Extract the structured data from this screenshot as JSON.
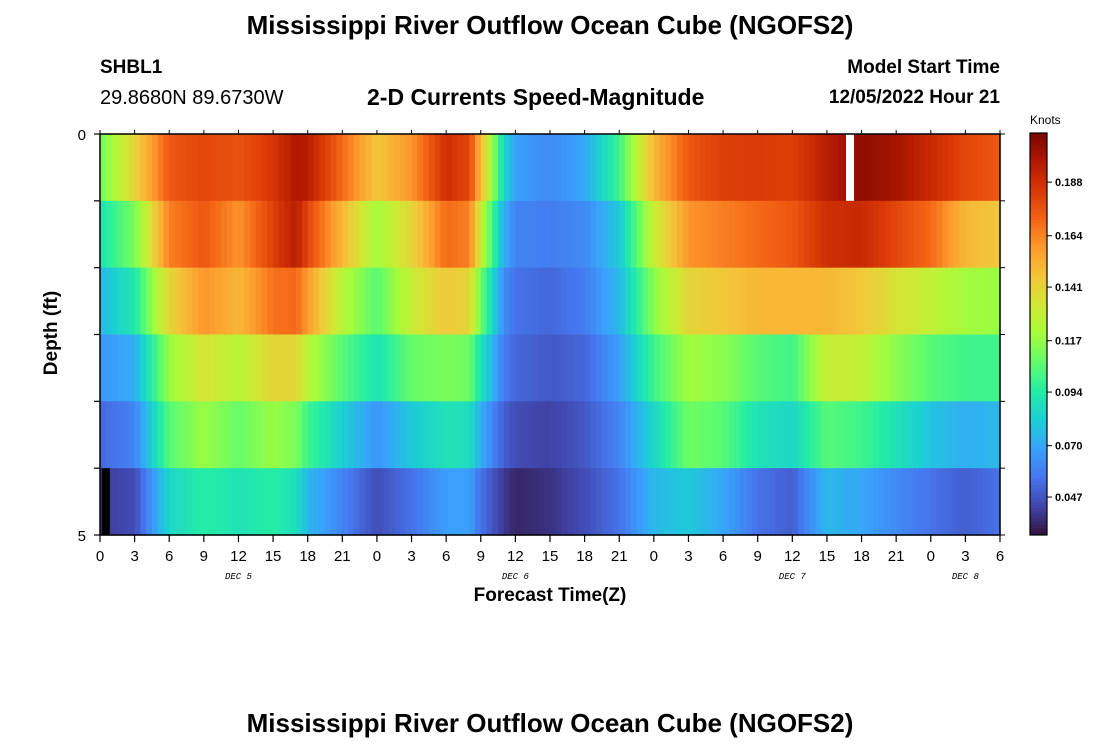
{
  "header": {
    "title": "Mississippi River Outflow Ocean Cube (NGOFS2)",
    "station": "SHBL1",
    "coordinates": "29.8680N  89.6730W",
    "subtitle": "2-D Currents Speed-Magnitude",
    "start_label": "Model Start Time",
    "start_value": "12/05/2022 Hour 21"
  },
  "footer": {
    "title": "Mississippi River Outflow Ocean Cube (NGOFS2)"
  },
  "chart_data": {
    "type": "heatmap",
    "title": "2-D Currents Speed-Magnitude",
    "xlabel": "Forecast Time(Z)",
    "ylabel": "Depth (ft)",
    "colorbar_label": "Knots",
    "x_range_hours": [
      0,
      78
    ],
    "y_range": [
      0,
      5
    ],
    "y_ticks": [
      "0",
      "5"
    ],
    "x_ticks": [
      "0",
      "3",
      "6",
      "9",
      "12",
      "15",
      "18",
      "21",
      "0",
      "3",
      "6",
      "9",
      "12",
      "15",
      "18",
      "21",
      "0",
      "3",
      "6",
      "9",
      "12",
      "15",
      "18",
      "21",
      "0",
      "3",
      "6"
    ],
    "day_labels": [
      {
        "label": "DEC 5",
        "hour": 12
      },
      {
        "label": "DEC 6",
        "hour": 36
      },
      {
        "label": "DEC 7",
        "hour": 60
      },
      {
        "label": "DEC 8",
        "hour": 75
      }
    ],
    "colorbar_ticks": [
      "0.047",
      "0.070",
      "0.094",
      "0.117",
      "0.141",
      "0.164",
      "0.188"
    ],
    "colorbar_tick_values": [
      0.047,
      0.07,
      0.094,
      0.117,
      0.141,
      0.164,
      0.188
    ],
    "value_range": [
      0.03,
      0.21
    ],
    "colormap": [
      "#30123b",
      "#4145ab",
      "#4675ed",
      "#39a2fc",
      "#1bcfd4",
      "#24eca6",
      "#61fc6c",
      "#a4fc3b",
      "#d1e834",
      "#f3c63a",
      "#fe9b2d",
      "#f36315",
      "#d93806",
      "#b11901",
      "#7a0402"
    ],
    "layer_keyframes": [
      {
        "x": [
          0,
          3,
          6,
          9,
          12,
          15,
          17,
          18,
          21,
          24,
          27,
          30,
          32,
          33,
          35,
          36,
          39,
          42,
          45,
          48,
          51,
          54,
          57,
          60,
          63,
          66,
          69,
          72,
          75,
          78
        ],
        "v": [
          0.11,
          0.14,
          0.175,
          0.18,
          0.176,
          0.185,
          0.198,
          0.195,
          0.17,
          0.145,
          0.16,
          0.188,
          0.18,
          0.15,
          0.085,
          0.068,
          0.062,
          0.07,
          0.1,
          0.15,
          0.175,
          0.182,
          0.184,
          0.182,
          0.195,
          0.205,
          0.2,
          0.19,
          0.18,
          0.175
        ]
      },
      {
        "x": [
          0,
          3,
          6,
          9,
          12,
          15,
          17,
          18,
          21,
          24,
          27,
          30,
          32,
          33,
          35,
          36,
          39,
          42,
          45,
          48,
          51,
          54,
          57,
          60,
          63,
          66,
          69,
          72,
          75,
          78
        ],
        "v": [
          0.09,
          0.112,
          0.165,
          0.175,
          0.16,
          0.182,
          0.195,
          0.18,
          0.15,
          0.12,
          0.14,
          0.17,
          0.165,
          0.13,
          0.072,
          0.06,
          0.058,
          0.062,
          0.08,
          0.13,
          0.16,
          0.165,
          0.17,
          0.175,
          0.188,
          0.19,
          0.18,
          0.17,
          0.15,
          0.145
        ]
      },
      {
        "x": [
          0,
          3,
          6,
          9,
          12,
          15,
          17,
          18,
          21,
          24,
          27,
          30,
          32,
          33,
          35,
          36,
          39,
          42,
          45,
          48,
          51,
          54,
          57,
          60,
          63,
          66,
          69,
          72,
          75,
          78
        ],
        "v": [
          0.075,
          0.092,
          0.14,
          0.16,
          0.15,
          0.168,
          0.17,
          0.158,
          0.125,
          0.105,
          0.13,
          0.145,
          0.14,
          0.11,
          0.062,
          0.055,
          0.052,
          0.058,
          0.075,
          0.115,
          0.14,
          0.145,
          0.15,
          0.15,
          0.15,
          0.145,
          0.135,
          0.128,
          0.12,
          0.118
        ]
      },
      {
        "x": [
          0,
          3,
          6,
          9,
          12,
          15,
          17,
          18,
          21,
          24,
          27,
          30,
          32,
          33,
          35,
          36,
          39,
          42,
          45,
          48,
          51,
          54,
          57,
          60,
          63,
          66,
          69,
          72,
          75,
          78
        ],
        "v": [
          0.065,
          0.072,
          0.118,
          0.135,
          0.125,
          0.14,
          0.14,
          0.125,
          0.105,
          0.09,
          0.108,
          0.112,
          0.11,
          0.09,
          0.058,
          0.052,
          0.048,
          0.052,
          0.068,
          0.1,
          0.12,
          0.115,
          0.105,
          0.1,
          0.13,
          0.128,
          0.115,
          0.105,
          0.1,
          0.1
        ]
      },
      {
        "x": [
          0,
          3,
          6,
          9,
          12,
          15,
          17,
          18,
          21,
          24,
          27,
          30,
          32,
          33,
          35,
          36,
          39,
          42,
          45,
          48,
          51,
          54,
          57,
          60,
          63,
          66,
          69,
          72,
          75,
          78
        ],
        "v": [
          0.052,
          0.06,
          0.105,
          0.118,
          0.108,
          0.118,
          0.112,
          0.1,
          0.082,
          0.065,
          0.08,
          0.09,
          0.088,
          0.072,
          0.05,
          0.045,
          0.042,
          0.048,
          0.06,
          0.085,
          0.11,
          0.105,
          0.09,
          0.085,
          0.105,
          0.1,
          0.09,
          0.078,
          0.072,
          0.075
        ]
      },
      {
        "x": [
          0,
          3,
          6,
          9,
          12,
          15,
          17,
          18,
          21,
          24,
          27,
          30,
          32,
          33,
          35,
          36,
          39,
          42,
          45,
          48,
          51,
          54,
          57,
          60,
          63,
          66,
          69,
          72,
          75,
          78
        ],
        "v": [
          0.04,
          0.045,
          0.085,
          0.095,
          0.09,
          0.095,
          0.088,
          0.075,
          0.06,
          0.045,
          0.055,
          0.068,
          0.068,
          0.055,
          0.04,
          0.035,
          0.038,
          0.045,
          0.055,
          0.075,
          0.08,
          0.07,
          0.055,
          0.05,
          0.075,
          0.07,
          0.062,
          0.055,
          0.05,
          0.055
        ]
      }
    ],
    "missing_cells": [
      {
        "layer": 0,
        "hour": 65
      },
      {
        "layer": 5,
        "hour": 0.5,
        "color": "#000000"
      }
    ]
  }
}
